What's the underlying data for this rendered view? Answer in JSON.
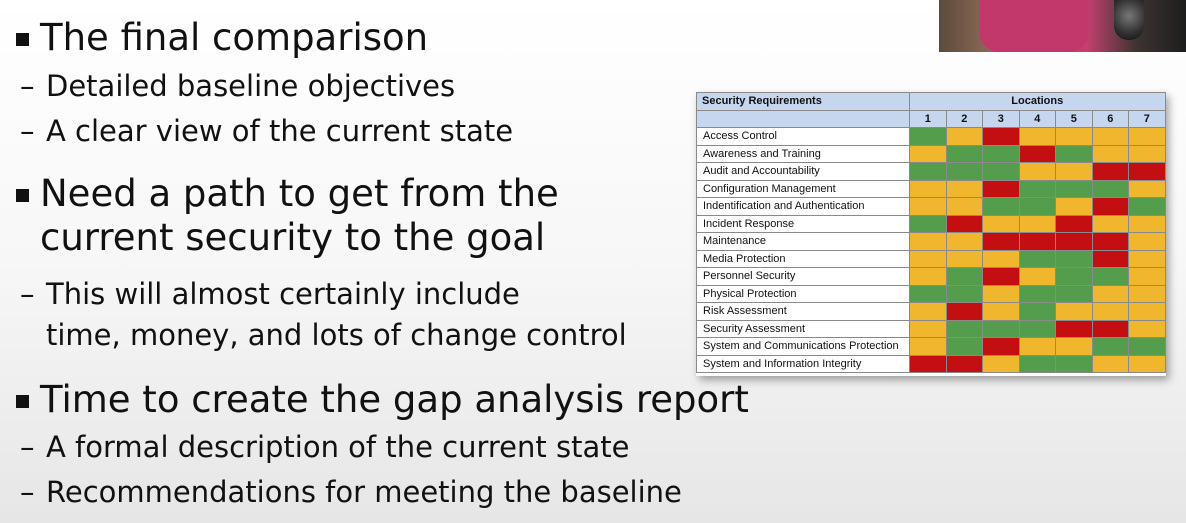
{
  "slide": {
    "bullets": [
      {
        "text": "The final comparison",
        "subs": [
          "Detailed baseline objectives",
          "A clear view of the current state"
        ]
      },
      {
        "text": "Need a path to get from the\ncurrent security to the goal",
        "subs": [
          "This will almost certainly include\n time, money, and lots of change control"
        ]
      },
      {
        "text": "Time to create the gap analysis report",
        "subs": [
          "A formal description of the current state",
          "Recommendations for meeting the baseline"
        ]
      }
    ],
    "dash": "–"
  },
  "table": {
    "header_requirements": "Security Requirements",
    "header_locations": "Locations",
    "location_numbers": [
      "1",
      "2",
      "3",
      "4",
      "5",
      "6",
      "7"
    ],
    "colors": {
      "G": "#549d4c",
      "Y": "#f0b62e",
      "R": "#c30f12"
    },
    "rows": [
      {
        "name": "Access Control",
        "cells": [
          "G",
          "Y",
          "R",
          "Y",
          "Y",
          "Y",
          "Y"
        ]
      },
      {
        "name": "Awareness and Training",
        "cells": [
          "Y",
          "G",
          "G",
          "R",
          "G",
          "Y",
          "Y"
        ]
      },
      {
        "name": "Audit and Accountability",
        "cells": [
          "G",
          "G",
          "G",
          "Y",
          "Y",
          "R",
          "R"
        ]
      },
      {
        "name": "Configuration Management",
        "cells": [
          "Y",
          "Y",
          "R",
          "G",
          "G",
          "G",
          "Y"
        ]
      },
      {
        "name": "Indentification and Authentication",
        "cells": [
          "Y",
          "Y",
          "G",
          "G",
          "Y",
          "R",
          "G"
        ]
      },
      {
        "name": "Incident Response",
        "cells": [
          "G",
          "R",
          "Y",
          "Y",
          "R",
          "Y",
          "Y"
        ]
      },
      {
        "name": "Maintenance",
        "cells": [
          "Y",
          "Y",
          "R",
          "R",
          "R",
          "R",
          "Y"
        ]
      },
      {
        "name": "Media Protection",
        "cells": [
          "Y",
          "Y",
          "Y",
          "G",
          "G",
          "R",
          "Y"
        ]
      },
      {
        "name": "Personnel Security",
        "cells": [
          "Y",
          "G",
          "R",
          "Y",
          "G",
          "G",
          "Y"
        ]
      },
      {
        "name": "Physical Protection",
        "cells": [
          "G",
          "G",
          "Y",
          "G",
          "G",
          "Y",
          "Y"
        ]
      },
      {
        "name": "Risk Assessment",
        "cells": [
          "Y",
          "R",
          "Y",
          "G",
          "Y",
          "Y",
          "Y"
        ]
      },
      {
        "name": "Security Assessment",
        "cells": [
          "Y",
          "G",
          "G",
          "G",
          "R",
          "R",
          "Y"
        ]
      },
      {
        "name": "System and Communications Protection",
        "cells": [
          "Y",
          "G",
          "R",
          "Y",
          "Y",
          "G",
          "G"
        ]
      },
      {
        "name": "System and Information Integrity",
        "cells": [
          "R",
          "R",
          "Y",
          "G",
          "G",
          "Y",
          "Y"
        ]
      }
    ]
  }
}
